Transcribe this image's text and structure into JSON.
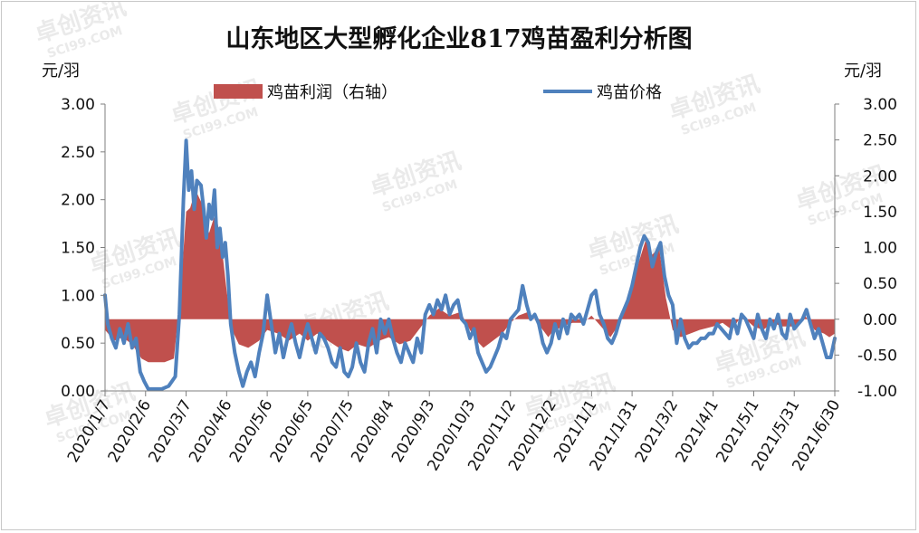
{
  "chart_data": {
    "type": "bar+line",
    "title": "山东地区大型孵化企业817鸡苗盈利分析图",
    "left_unit": "元/羽",
    "right_unit": "元/羽",
    "left_ylim": [
      0,
      3
    ],
    "right_ylim": [
      -1,
      3
    ],
    "left_ticks": [
      "0.00",
      "0.50",
      "1.00",
      "1.50",
      "2.00",
      "2.50",
      "3.00"
    ],
    "right_ticks": [
      "-1.00",
      "-0.50",
      "0.00",
      "0.50",
      "1.00",
      "1.50",
      "2.00",
      "2.50",
      "3.00"
    ],
    "x_tick_labels": [
      "2020/1/7",
      "2020/2/6",
      "2020/3/7",
      "2020/4/6",
      "2020/5/6",
      "2020/6/5",
      "2020/7/5",
      "2020/8/4",
      "2020/9/3",
      "2020/10/3",
      "2020/11/2",
      "2020/12/2",
      "2021/1/1",
      "2021/1/31",
      "2021/3/2",
      "2021/4/1",
      "2021/5/1",
      "2021/5/31",
      "2021/6/30"
    ],
    "legend_placement": "top",
    "grid": false,
    "watermark": "卓创资讯 SCI99.COM",
    "series": [
      {
        "name": "鸡苗利润（右轴）",
        "kind": "area",
        "axis": "right",
        "color": "#c0504d",
        "points": [
          [
            "2020-01-07",
            -0.15
          ],
          [
            "2020-01-14",
            -0.3
          ],
          [
            "2020-01-20",
            -0.25
          ],
          [
            "2020-01-27",
            -0.35
          ],
          [
            "2020-02-03",
            -0.55
          ],
          [
            "2020-02-08",
            -0.6
          ],
          [
            "2020-02-14",
            -0.6
          ],
          [
            "2020-02-20",
            -0.6
          ],
          [
            "2020-02-27",
            -0.55
          ],
          [
            "2020-03-03",
            0.4
          ],
          [
            "2020-03-07",
            1.5
          ],
          [
            "2020-03-10",
            1.55
          ],
          [
            "2020-03-14",
            1.8
          ],
          [
            "2020-03-19",
            1.6
          ],
          [
            "2020-03-24",
            1.2
          ],
          [
            "2020-03-29",
            1.5
          ],
          [
            "2020-04-03",
            0.9
          ],
          [
            "2020-04-06",
            0.4
          ],
          [
            "2020-04-10",
            -0.15
          ],
          [
            "2020-04-15",
            -0.35
          ],
          [
            "2020-04-22",
            -0.4
          ],
          [
            "2020-04-30",
            -0.3
          ],
          [
            "2020-05-06",
            -0.15
          ],
          [
            "2020-05-14",
            -0.2
          ],
          [
            "2020-05-22",
            -0.3
          ],
          [
            "2020-05-30",
            -0.2
          ],
          [
            "2020-06-05",
            -0.3
          ],
          [
            "2020-06-12",
            -0.2
          ],
          [
            "2020-06-20",
            -0.3
          ],
          [
            "2020-06-28",
            -0.4
          ],
          [
            "2020-07-05",
            -0.45
          ],
          [
            "2020-07-12",
            -0.35
          ],
          [
            "2020-07-20",
            -0.4
          ],
          [
            "2020-07-28",
            -0.3
          ],
          [
            "2020-08-04",
            -0.25
          ],
          [
            "2020-08-12",
            -0.35
          ],
          [
            "2020-08-20",
            -0.3
          ],
          [
            "2020-08-28",
            -0.1
          ],
          [
            "2020-09-03",
            0.05
          ],
          [
            "2020-09-10",
            0.15
          ],
          [
            "2020-09-18",
            0.05
          ],
          [
            "2020-09-26",
            0.1
          ],
          [
            "2020-10-03",
            -0.15
          ],
          [
            "2020-10-08",
            -0.3
          ],
          [
            "2020-10-13",
            -0.4
          ],
          [
            "2020-10-20",
            -0.3
          ],
          [
            "2020-10-27",
            -0.2
          ],
          [
            "2020-11-02",
            -0.05
          ],
          [
            "2020-11-08",
            0.05
          ],
          [
            "2020-11-15",
            0.1
          ],
          [
            "2020-11-22",
            -0.05
          ],
          [
            "2020-11-30",
            -0.25
          ],
          [
            "2020-12-02",
            -0.2
          ],
          [
            "2020-12-10",
            -0.1
          ],
          [
            "2020-12-18",
            -0.05
          ],
          [
            "2020-12-26",
            -0.05
          ],
          [
            "2021-01-01",
            0.05
          ],
          [
            "2021-01-08",
            -0.1
          ],
          [
            "2021-01-15",
            -0.25
          ],
          [
            "2021-01-22",
            -0.05
          ],
          [
            "2021-01-31",
            0.4
          ],
          [
            "2021-02-05",
            0.8
          ],
          [
            "2021-02-10",
            1.1
          ],
          [
            "2021-02-15",
            0.9
          ],
          [
            "2021-02-20",
            1.0
          ],
          [
            "2021-02-25",
            0.3
          ],
          [
            "2021-03-02",
            -0.15
          ],
          [
            "2021-03-08",
            -0.25
          ],
          [
            "2021-03-15",
            -0.2
          ],
          [
            "2021-03-22",
            -0.15
          ],
          [
            "2021-04-01",
            -0.1
          ],
          [
            "2021-04-08",
            -0.05
          ],
          [
            "2021-04-15",
            -0.15
          ],
          [
            "2021-04-22",
            0.05
          ],
          [
            "2021-05-01",
            -0.1
          ],
          [
            "2021-05-08",
            -0.15
          ],
          [
            "2021-05-15",
            -0.05
          ],
          [
            "2021-05-22",
            -0.1
          ],
          [
            "2021-05-31",
            -0.1
          ],
          [
            "2021-06-08",
            0.05
          ],
          [
            "2021-06-15",
            -0.15
          ],
          [
            "2021-06-22",
            -0.2
          ],
          [
            "2021-06-26",
            -0.25
          ],
          [
            "2021-06-30",
            -0.2
          ]
        ]
      },
      {
        "name": "鸡苗价格",
        "kind": "line",
        "axis": "left",
        "color": "#4f81bd",
        "points": [
          [
            "2020-01-07",
            1.0
          ],
          [
            "2020-01-09",
            0.7
          ],
          [
            "2020-01-12",
            0.55
          ],
          [
            "2020-01-15",
            0.45
          ],
          [
            "2020-01-18",
            0.65
          ],
          [
            "2020-01-21",
            0.5
          ],
          [
            "2020-01-24",
            0.7
          ],
          [
            "2020-01-27",
            0.45
          ],
          [
            "2020-01-30",
            0.55
          ],
          [
            "2020-02-02",
            0.2
          ],
          [
            "2020-02-05",
            0.1
          ],
          [
            "2020-02-08",
            0.02
          ],
          [
            "2020-02-13",
            0.02
          ],
          [
            "2020-02-18",
            0.02
          ],
          [
            "2020-02-23",
            0.05
          ],
          [
            "2020-02-28",
            0.15
          ],
          [
            "2020-03-02",
            0.8
          ],
          [
            "2020-03-05",
            2.0
          ],
          [
            "2020-03-07",
            2.62
          ],
          [
            "2020-03-09",
            2.1
          ],
          [
            "2020-03-11",
            2.3
          ],
          [
            "2020-03-13",
            1.9
          ],
          [
            "2020-03-15",
            2.2
          ],
          [
            "2020-03-18",
            2.15
          ],
          [
            "2020-03-20",
            1.9
          ],
          [
            "2020-03-22",
            1.6
          ],
          [
            "2020-03-24",
            1.95
          ],
          [
            "2020-03-26",
            1.8
          ],
          [
            "2020-03-28",
            2.1
          ],
          [
            "2020-03-30",
            1.5
          ],
          [
            "2020-04-01",
            1.7
          ],
          [
            "2020-04-03",
            1.4
          ],
          [
            "2020-04-05",
            1.55
          ],
          [
            "2020-04-07",
            1.2
          ],
          [
            "2020-04-09",
            0.7
          ],
          [
            "2020-04-12",
            0.4
          ],
          [
            "2020-04-15",
            0.2
          ],
          [
            "2020-04-18",
            0.05
          ],
          [
            "2020-04-21",
            0.2
          ],
          [
            "2020-04-24",
            0.3
          ],
          [
            "2020-04-27",
            0.15
          ],
          [
            "2020-04-30",
            0.4
          ],
          [
            "2020-05-03",
            0.6
          ],
          [
            "2020-05-06",
            1.0
          ],
          [
            "2020-05-09",
            0.7
          ],
          [
            "2020-05-12",
            0.4
          ],
          [
            "2020-05-15",
            0.6
          ],
          [
            "2020-05-18",
            0.35
          ],
          [
            "2020-05-21",
            0.55
          ],
          [
            "2020-05-24",
            0.7
          ],
          [
            "2020-05-27",
            0.5
          ],
          [
            "2020-05-30",
            0.35
          ],
          [
            "2020-06-02",
            0.55
          ],
          [
            "2020-06-05",
            0.7
          ],
          [
            "2020-06-08",
            0.55
          ],
          [
            "2020-06-11",
            0.4
          ],
          [
            "2020-06-14",
            0.6
          ],
          [
            "2020-06-17",
            0.55
          ],
          [
            "2020-06-20",
            0.45
          ],
          [
            "2020-06-23",
            0.3
          ],
          [
            "2020-06-26",
            0.25
          ],
          [
            "2020-06-29",
            0.45
          ],
          [
            "2020-07-02",
            0.2
          ],
          [
            "2020-07-05",
            0.15
          ],
          [
            "2020-07-08",
            0.25
          ],
          [
            "2020-07-11",
            0.5
          ],
          [
            "2020-07-14",
            0.3
          ],
          [
            "2020-07-17",
            0.2
          ],
          [
            "2020-07-20",
            0.5
          ],
          [
            "2020-07-23",
            0.65
          ],
          [
            "2020-07-26",
            0.4
          ],
          [
            "2020-07-29",
            0.75
          ],
          [
            "2020-08-01",
            0.6
          ],
          [
            "2020-08-04",
            0.75
          ],
          [
            "2020-08-07",
            0.55
          ],
          [
            "2020-08-10",
            0.4
          ],
          [
            "2020-08-13",
            0.3
          ],
          [
            "2020-08-16",
            0.5
          ],
          [
            "2020-08-19",
            0.4
          ],
          [
            "2020-08-22",
            0.3
          ],
          [
            "2020-08-25",
            0.55
          ],
          [
            "2020-08-28",
            0.4
          ],
          [
            "2020-08-31",
            0.8
          ],
          [
            "2020-09-03",
            0.9
          ],
          [
            "2020-09-06",
            0.8
          ],
          [
            "2020-09-09",
            0.95
          ],
          [
            "2020-09-12",
            0.85
          ],
          [
            "2020-09-15",
            1.0
          ],
          [
            "2020-09-18",
            0.8
          ],
          [
            "2020-09-21",
            0.9
          ],
          [
            "2020-09-24",
            0.95
          ],
          [
            "2020-09-27",
            0.75
          ],
          [
            "2020-09-30",
            0.7
          ],
          [
            "2020-10-03",
            0.55
          ],
          [
            "2020-10-06",
            0.65
          ],
          [
            "2020-10-09",
            0.4
          ],
          [
            "2020-10-12",
            0.3
          ],
          [
            "2020-10-15",
            0.2
          ],
          [
            "2020-10-18",
            0.25
          ],
          [
            "2020-10-21",
            0.35
          ],
          [
            "2020-10-24",
            0.45
          ],
          [
            "2020-10-27",
            0.6
          ],
          [
            "2020-10-30",
            0.55
          ],
          [
            "2020-11-02",
            0.75
          ],
          [
            "2020-11-05",
            0.8
          ],
          [
            "2020-11-08",
            0.85
          ],
          [
            "2020-11-11",
            1.1
          ],
          [
            "2020-11-14",
            0.9
          ],
          [
            "2020-11-17",
            0.75
          ],
          [
            "2020-11-20",
            0.8
          ],
          [
            "2020-11-23",
            0.7
          ],
          [
            "2020-11-26",
            0.5
          ],
          [
            "2020-11-29",
            0.4
          ],
          [
            "2020-12-02",
            0.5
          ],
          [
            "2020-12-05",
            0.7
          ],
          [
            "2020-12-08",
            0.55
          ],
          [
            "2020-12-11",
            0.75
          ],
          [
            "2020-12-14",
            0.6
          ],
          [
            "2020-12-17",
            0.8
          ],
          [
            "2020-12-20",
            0.75
          ],
          [
            "2020-12-23",
            0.8
          ],
          [
            "2020-12-26",
            0.7
          ],
          [
            "2020-12-29",
            0.85
          ],
          [
            "2021-01-01",
            1.0
          ],
          [
            "2021-01-04",
            1.05
          ],
          [
            "2021-01-07",
            0.8
          ],
          [
            "2021-01-10",
            0.7
          ],
          [
            "2021-01-13",
            0.55
          ],
          [
            "2021-01-16",
            0.5
          ],
          [
            "2021-01-19",
            0.6
          ],
          [
            "2021-01-22",
            0.75
          ],
          [
            "2021-01-25",
            0.85
          ],
          [
            "2021-01-28",
            0.95
          ],
          [
            "2021-01-31",
            1.1
          ],
          [
            "2021-02-03",
            1.3
          ],
          [
            "2021-02-06",
            1.5
          ],
          [
            "2021-02-09",
            1.62
          ],
          [
            "2021-02-12",
            1.55
          ],
          [
            "2021-02-15",
            1.3
          ],
          [
            "2021-02-18",
            1.45
          ],
          [
            "2021-02-21",
            1.55
          ],
          [
            "2021-02-24",
            1.2
          ],
          [
            "2021-02-27",
            1.0
          ],
          [
            "2021-03-02",
            0.9
          ],
          [
            "2021-03-05",
            0.5
          ],
          [
            "2021-03-08",
            0.75
          ],
          [
            "2021-03-11",
            0.55
          ],
          [
            "2021-03-14",
            0.45
          ],
          [
            "2021-03-17",
            0.5
          ],
          [
            "2021-03-20",
            0.5
          ],
          [
            "2021-03-23",
            0.55
          ],
          [
            "2021-03-26",
            0.55
          ],
          [
            "2021-03-29",
            0.6
          ],
          [
            "2021-04-01",
            0.6
          ],
          [
            "2021-04-04",
            0.7
          ],
          [
            "2021-04-07",
            0.65
          ],
          [
            "2021-04-10",
            0.6
          ],
          [
            "2021-04-13",
            0.55
          ],
          [
            "2021-04-16",
            0.75
          ],
          [
            "2021-04-19",
            0.6
          ],
          [
            "2021-04-22",
            0.8
          ],
          [
            "2021-04-25",
            0.75
          ],
          [
            "2021-04-28",
            0.65
          ],
          [
            "2021-05-01",
            0.55
          ],
          [
            "2021-05-04",
            0.8
          ],
          [
            "2021-05-07",
            0.65
          ],
          [
            "2021-05-10",
            0.55
          ],
          [
            "2021-05-13",
            0.75
          ],
          [
            "2021-05-16",
            0.65
          ],
          [
            "2021-05-19",
            0.8
          ],
          [
            "2021-05-22",
            0.6
          ],
          [
            "2021-05-25",
            0.55
          ],
          [
            "2021-05-28",
            0.8
          ],
          [
            "2021-05-31",
            0.65
          ],
          [
            "2021-06-03",
            0.7
          ],
          [
            "2021-06-06",
            0.75
          ],
          [
            "2021-06-09",
            0.85
          ],
          [
            "2021-06-12",
            0.7
          ],
          [
            "2021-06-15",
            0.55
          ],
          [
            "2021-06-18",
            0.65
          ],
          [
            "2021-06-21",
            0.5
          ],
          [
            "2021-06-24",
            0.35
          ],
          [
            "2021-06-27",
            0.35
          ],
          [
            "2021-06-30",
            0.55
          ]
        ]
      }
    ]
  }
}
